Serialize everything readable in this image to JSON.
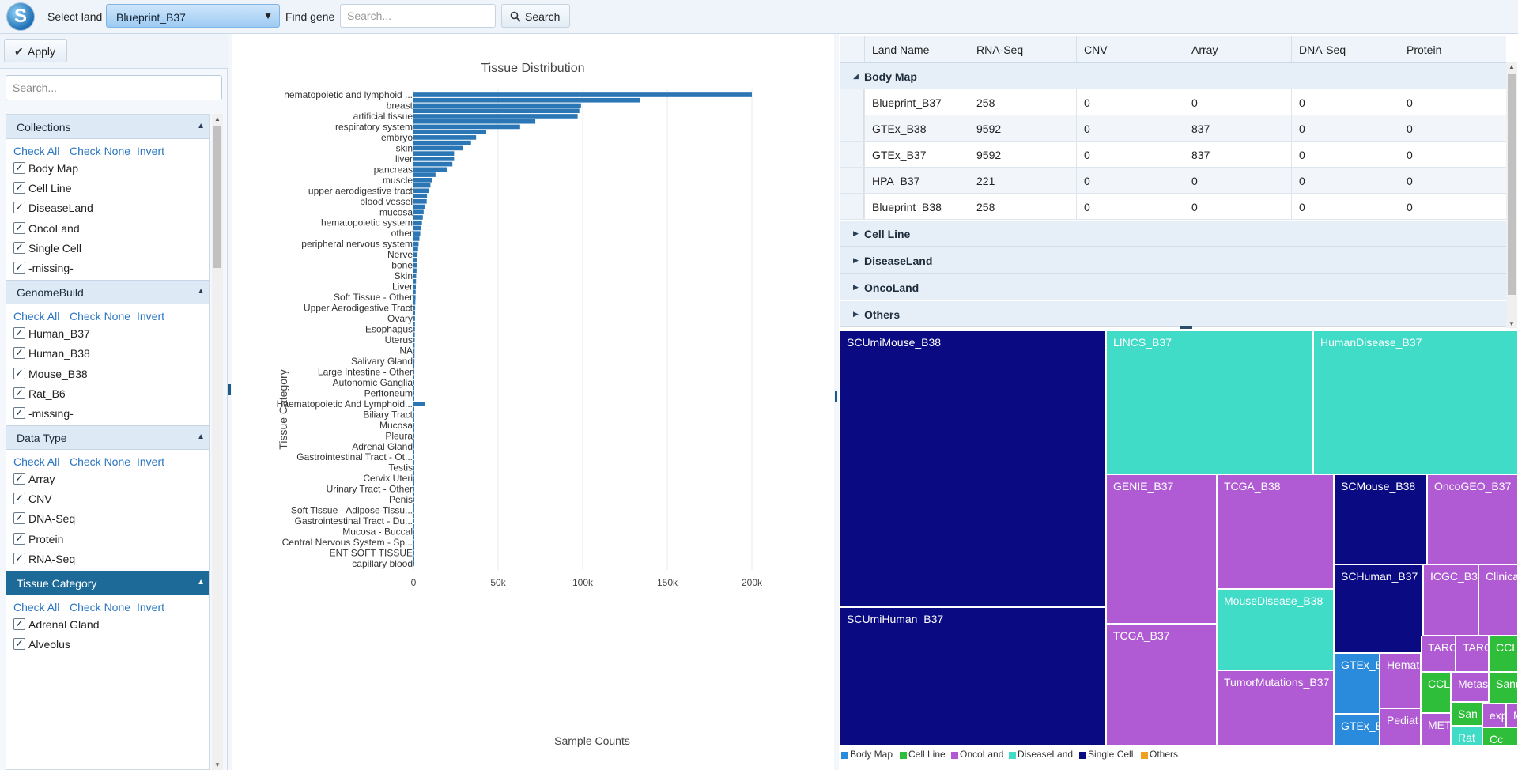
{
  "toolbar": {
    "logo_letter": "S",
    "select_land_label": "Select land",
    "land_value": "Blueprint_B37",
    "find_gene_label": "Find gene",
    "gene_placeholder": "Search...",
    "search_label": "Search"
  },
  "filters": {
    "apply_label": "Apply",
    "search_placeholder": "Search...",
    "check_all": "Check All",
    "check_none": "Check None",
    "invert": "Invert",
    "groups": [
      {
        "title": "Collections",
        "options": [
          "Body Map",
          "Cell Line",
          "DiseaseLand",
          "OncoLand",
          "Single Cell",
          "-missing-"
        ]
      },
      {
        "title": "GenomeBuild",
        "options": [
          "Human_B37",
          "Human_B38",
          "Mouse_B38",
          "Rat_B6",
          "-missing-"
        ]
      },
      {
        "title": "Data Type",
        "options": [
          "Array",
          "CNV",
          "DNA-Seq",
          "Protein",
          "RNA-Seq"
        ]
      },
      {
        "title": "Tissue Category",
        "options": [
          "Adrenal Gland",
          "Alveolus"
        ]
      }
    ]
  },
  "chart_data": {
    "type": "bar",
    "title": "Tissue Distribution",
    "xlabel": "Sample Counts",
    "ylabel": "Tissue Category",
    "orientation": "horizontal",
    "xlim": [
      0,
      200000
    ],
    "xticks": [
      "0",
      "50k",
      "100k",
      "150k",
      "200k"
    ],
    "grid": true,
    "categories": [
      "hematopoietic and lymphoid ...",
      "",
      "breast",
      "",
      "artificial tissue",
      "",
      "respiratory system",
      "",
      "embryo",
      "",
      "skin",
      "",
      "liver",
      "",
      "pancreas",
      "",
      "muscle",
      "",
      "upper aerodigestive tract",
      "",
      "blood vessel",
      "",
      "mucosa",
      "",
      "hematopoietic system",
      "",
      "other",
      "",
      "peripheral nervous system",
      "",
      "Nerve",
      "",
      "bone",
      "",
      "Skin",
      "",
      "Liver",
      "",
      "Soft Tissue - Other",
      "",
      "Upper Aerodigestive Tract",
      "",
      "Ovary",
      "",
      "Esophagus",
      "",
      "Uterus",
      "",
      "NA",
      "",
      "Salivary Gland",
      "",
      "Large Intestine - Other",
      "",
      "Autonomic Ganglia",
      "",
      "Peritoneum",
      "",
      "Haematopoietic And Lymphoid...",
      "",
      "Biliary Tract",
      "",
      "Mucosa",
      "",
      "Pleura",
      "",
      "Adrenal Gland",
      "",
      "Gastrointestinal Tract - Ot...",
      "",
      "Testis",
      "",
      "Cervix Uteri",
      "",
      "Urinary Tract - Other",
      "",
      "Penis",
      "",
      "Soft Tissue - Adipose Tissu...",
      "",
      "Gastrointestinal Tract - Du...",
      "",
      "Mucosa - Buccal",
      "",
      "Central Nervous System - Sp...",
      "",
      "ENT SOFT TISSUE",
      "",
      "capillary blood"
    ],
    "values": [
      200000,
      134000,
      99000,
      98000,
      97000,
      72000,
      63000,
      43000,
      37000,
      34000,
      29000,
      24000,
      24000,
      23000,
      20000,
      13000,
      11000,
      10000,
      9000,
      8000,
      7800,
      7000,
      6000,
      5500,
      5000,
      4500,
      4000,
      3500,
      3000,
      2700,
      2400,
      2200,
      2000,
      1800,
      1600,
      1500,
      1400,
      1300,
      1200,
      1100,
      1000,
      950,
      900,
      850,
      800,
      750,
      700,
      650,
      600,
      600,
      550,
      500,
      500,
      450,
      450,
      400,
      400,
      350,
      7000,
      350,
      300,
      300,
      300,
      250,
      250,
      250,
      250,
      200,
      200,
      200,
      200,
      200,
      150,
      150,
      150,
      150,
      150,
      100,
      100,
      100,
      100,
      100,
      100,
      80,
      80,
      80,
      60,
      60,
      60
    ],
    "bar_color": "#2b77b6"
  },
  "grid": {
    "columns": [
      "Land Name",
      "RNA-Seq",
      "CNV",
      "Array",
      "DNA-Seq",
      "Protein"
    ],
    "expanded_group": "Body Map",
    "rows": [
      [
        "Blueprint_B37",
        "258",
        "0",
        "0",
        "0",
        "0"
      ],
      [
        "GTEx_B38",
        "9592",
        "0",
        "837",
        "0",
        "0"
      ],
      [
        "GTEx_B37",
        "9592",
        "0",
        "837",
        "0",
        "0"
      ],
      [
        "HPA_B37",
        "221",
        "0",
        "0",
        "0",
        "0"
      ],
      [
        "Blueprint_B38",
        "258",
        "0",
        "0",
        "0",
        "0"
      ]
    ],
    "collapsed_groups": [
      "Cell Line",
      "DiseaseLand",
      "OncoLand",
      "Others"
    ]
  },
  "treemap": {
    "colors": {
      "Body Map": "#2a8bdc",
      "Cell Line": "#2fbe3a",
      "OncoLand": "#b05bd3",
      "DiseaseLand": "#40dcc8",
      "Single Cell": "#0a0a82",
      "Others": "#f0a020"
    },
    "tiles": [
      {
        "label": "SCUmiMouse_B38",
        "group": "Single Cell"
      },
      {
        "label": "SCUmiHuman_B37",
        "group": "Single Cell"
      },
      {
        "label": "LINCS_B37",
        "group": "DiseaseLand"
      },
      {
        "label": "HumanDisease_B37",
        "group": "DiseaseLand"
      },
      {
        "label": "GENIE_B37",
        "group": "OncoLand"
      },
      {
        "label": "TCGA_B37",
        "group": "OncoLand"
      },
      {
        "label": "TCGA_B38",
        "group": "OncoLand"
      },
      {
        "label": "MouseDisease_B38",
        "group": "DiseaseLand"
      },
      {
        "label": "TumorMutations_B37",
        "group": "OncoLand"
      },
      {
        "label": "SCMouse_B38",
        "group": "Single Cell"
      },
      {
        "label": "OncoGEO_B37",
        "group": "OncoLand"
      },
      {
        "label": "SCHuman_B37",
        "group": "Single Cell"
      },
      {
        "label": "ICGC_B3",
        "group": "OncoLand"
      },
      {
        "label": "Clinica",
        "group": "OncoLand"
      },
      {
        "label": "GTEx_E",
        "group": "Body Map"
      },
      {
        "label": "GTEx_E",
        "group": "Body Map"
      },
      {
        "label": "Hemat",
        "group": "OncoLand"
      },
      {
        "label": "Pediat",
        "group": "OncoLand"
      },
      {
        "label": "TARC",
        "group": "OncoLand"
      },
      {
        "label": "TARC",
        "group": "OncoLand"
      },
      {
        "label": "CCL",
        "group": "Cell Line"
      },
      {
        "label": "CCL",
        "group": "Cell Line"
      },
      {
        "label": "Metast",
        "group": "OncoLand"
      },
      {
        "label": "Sang",
        "group": "Cell Line"
      },
      {
        "label": "San",
        "group": "Cell Line"
      },
      {
        "label": "exp",
        "group": "OncoLand"
      },
      {
        "label": "Mi",
        "group": "OncoLand"
      },
      {
        "label": "MET",
        "group": "OncoLand"
      },
      {
        "label": "Rat",
        "group": "DiseaseLand"
      },
      {
        "label": "Cc",
        "group": "Cell Line"
      }
    ],
    "legend": [
      "Body Map",
      "Cell Line",
      "OncoLand",
      "DiseaseLand",
      "Single Cell",
      "Others"
    ]
  }
}
